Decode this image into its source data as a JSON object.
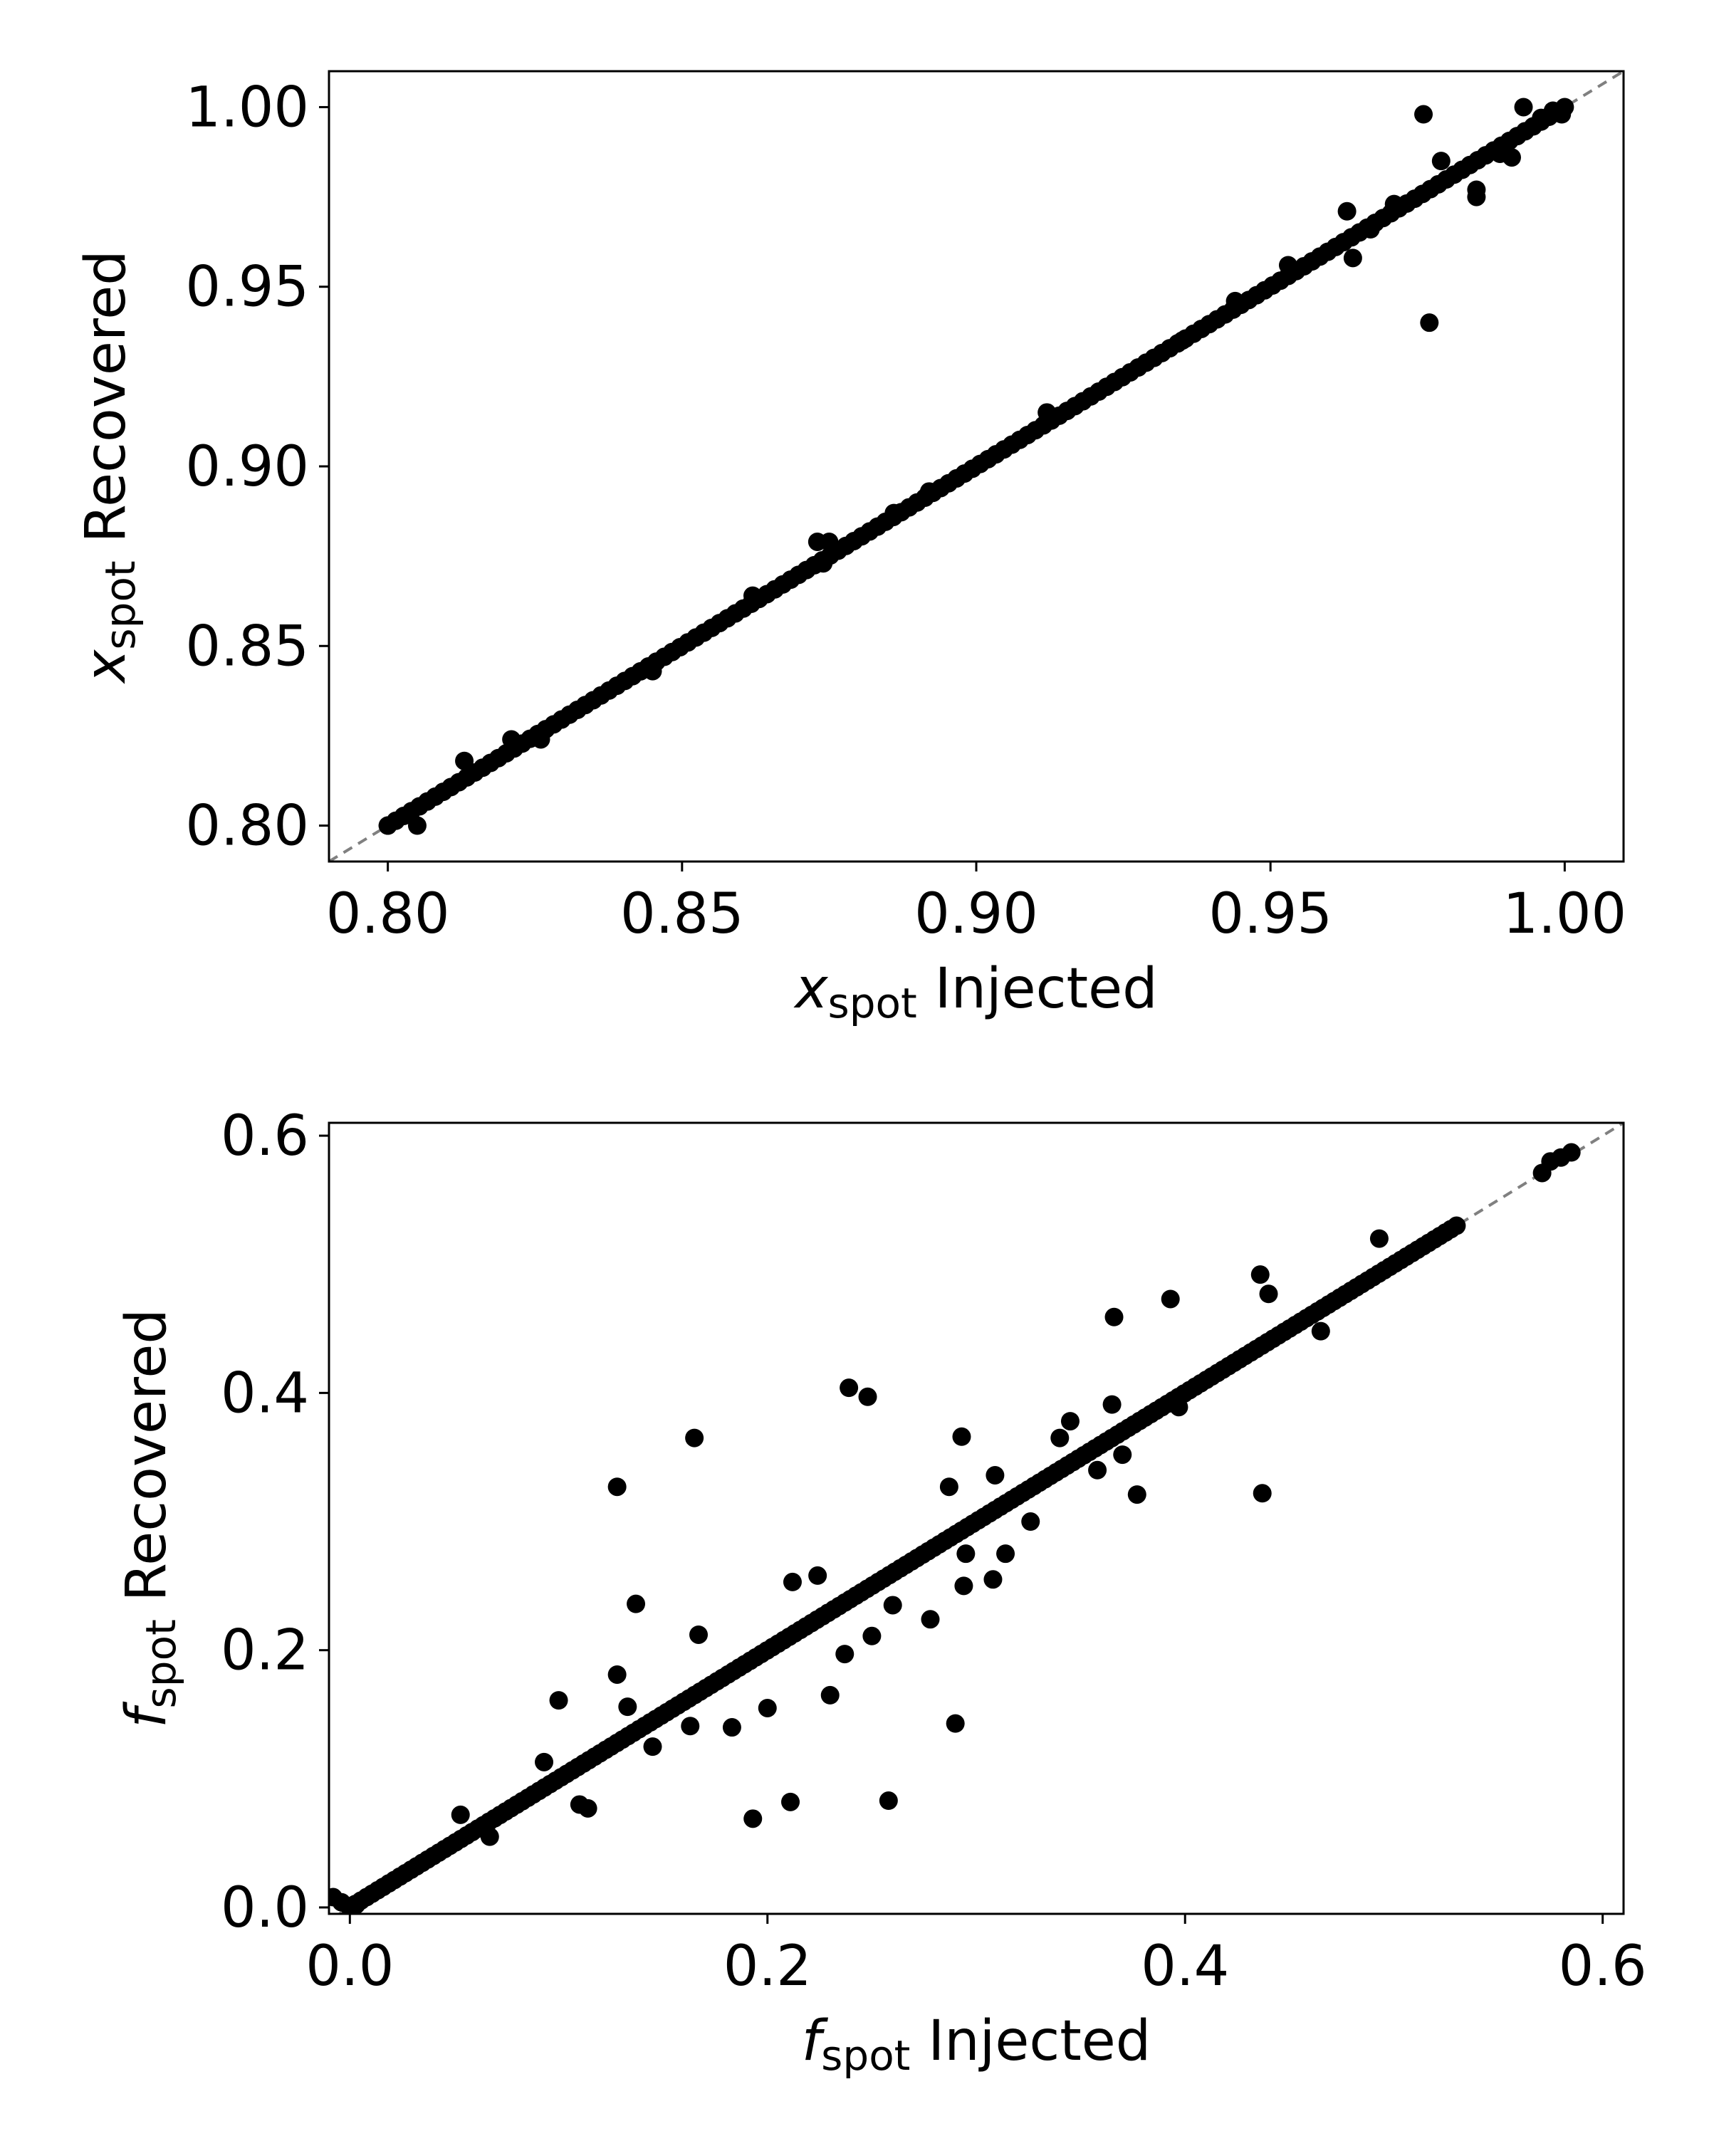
{
  "chart_data": [
    {
      "type": "scatter",
      "xlabel": {
        "symbol": "x",
        "subscript": "spot",
        "text": "Injected"
      },
      "ylabel": {
        "symbol": "x",
        "subscript": "spot",
        "text": "Recovered"
      },
      "xlim": [
        0.79,
        1.01
      ],
      "ylim": [
        0.79,
        1.01
      ],
      "xticks": [
        "0.80",
        "0.85",
        "0.90",
        "0.95",
        "1.00"
      ],
      "yticks": [
        "0.80",
        "0.85",
        "0.90",
        "0.95",
        "1.00"
      ],
      "reference_line": "y = x (gray dashed)",
      "line_series": {
        "x_start": 0.8,
        "x_end": 1.0,
        "count": 150
      },
      "points": [
        [
          0.8,
          0.8
        ],
        [
          0.805,
          0.8
        ],
        [
          0.813,
          0.818
        ],
        [
          0.821,
          0.824
        ],
        [
          0.826,
          0.824
        ],
        [
          0.845,
          0.843
        ],
        [
          0.862,
          0.864
        ],
        [
          0.873,
          0.879
        ],
        [
          0.875,
          0.879
        ],
        [
          0.874,
          0.873
        ],
        [
          0.886,
          0.887
        ],
        [
          0.892,
          0.893
        ],
        [
          0.912,
          0.915
        ],
        [
          0.935,
          0.935
        ],
        [
          0.944,
          0.946
        ],
        [
          0.953,
          0.956
        ],
        [
          0.964,
          0.958
        ],
        [
          0.963,
          0.971
        ],
        [
          0.967,
          0.966
        ],
        [
          0.971,
          0.973
        ],
        [
          0.976,
          0.998
        ],
        [
          0.977,
          0.94
        ],
        [
          0.979,
          0.985
        ],
        [
          0.985,
          0.975
        ],
        [
          0.985,
          0.977
        ],
        [
          0.989,
          0.987
        ],
        [
          0.991,
          0.986
        ],
        [
          0.993,
          1.0
        ],
        [
          0.996,
          0.997
        ],
        [
          0.998,
          0.999
        ],
        [
          0.9995,
          0.998
        ]
      ]
    },
    {
      "type": "scatter",
      "xlabel": {
        "symbol": "f",
        "subscript": "spot",
        "text": "Injected"
      },
      "ylabel": {
        "symbol": "f",
        "subscript": "spot",
        "text": "Recovered"
      },
      "xlim": [
        -0.01,
        0.61
      ],
      "ylim": [
        -0.005,
        0.61
      ],
      "xticks": [
        "0.0",
        "0.2",
        "0.4",
        "0.6"
      ],
      "yticks": [
        "0.0",
        "0.2",
        "0.4",
        "0.6"
      ],
      "reference_line": "y = x (gray dashed)",
      "line_series": {
        "x_start": 0.0,
        "x_end": 0.53,
        "count": 200
      },
      "points": [
        [
          -0.008,
          0.008
        ],
        [
          -0.004,
          0.004
        ],
        [
          0.0,
          0.001
        ],
        [
          0.003,
          0.002
        ],
        [
          0.053,
          0.072
        ],
        [
          0.067,
          0.055
        ],
        [
          0.093,
          0.113
        ],
        [
          0.1,
          0.161
        ],
        [
          0.11,
          0.08
        ],
        [
          0.114,
          0.077
        ],
        [
          0.128,
          0.327
        ],
        [
          0.128,
          0.181
        ],
        [
          0.133,
          0.156
        ],
        [
          0.137,
          0.236
        ],
        [
          0.145,
          0.125
        ],
        [
          0.165,
          0.365
        ],
        [
          0.167,
          0.212
        ],
        [
          0.163,
          0.141
        ],
        [
          0.183,
          0.14
        ],
        [
          0.193,
          0.069
        ],
        [
          0.2,
          0.155
        ],
        [
          0.211,
          0.082
        ],
        [
          0.212,
          0.253
        ],
        [
          0.224,
          0.258
        ],
        [
          0.23,
          0.165
        ],
        [
          0.237,
          0.197
        ],
        [
          0.239,
          0.404
        ],
        [
          0.248,
          0.397
        ],
        [
          0.25,
          0.211
        ],
        [
          0.258,
          0.083
        ],
        [
          0.26,
          0.235
        ],
        [
          0.278,
          0.224
        ],
        [
          0.287,
          0.327
        ],
        [
          0.29,
          0.143
        ],
        [
          0.293,
          0.366
        ],
        [
          0.294,
          0.25
        ],
        [
          0.295,
          0.275
        ],
        [
          0.308,
          0.255
        ],
        [
          0.309,
          0.336
        ],
        [
          0.314,
          0.275
        ],
        [
          0.326,
          0.3
        ],
        [
          0.34,
          0.365
        ],
        [
          0.345,
          0.378
        ],
        [
          0.358,
          0.34
        ],
        [
          0.366,
          0.459
        ],
        [
          0.365,
          0.391
        ],
        [
          0.37,
          0.352
        ],
        [
          0.377,
          0.321
        ],
        [
          0.393,
          0.473
        ],
        [
          0.397,
          0.389
        ],
        [
          0.436,
          0.492
        ],
        [
          0.437,
          0.322
        ],
        [
          0.44,
          0.477
        ],
        [
          0.465,
          0.448
        ],
        [
          0.493,
          0.52
        ],
        [
          0.571,
          0.571
        ],
        [
          0.575,
          0.58
        ],
        [
          0.58,
          0.583
        ],
        [
          0.585,
          0.587
        ]
      ]
    }
  ]
}
